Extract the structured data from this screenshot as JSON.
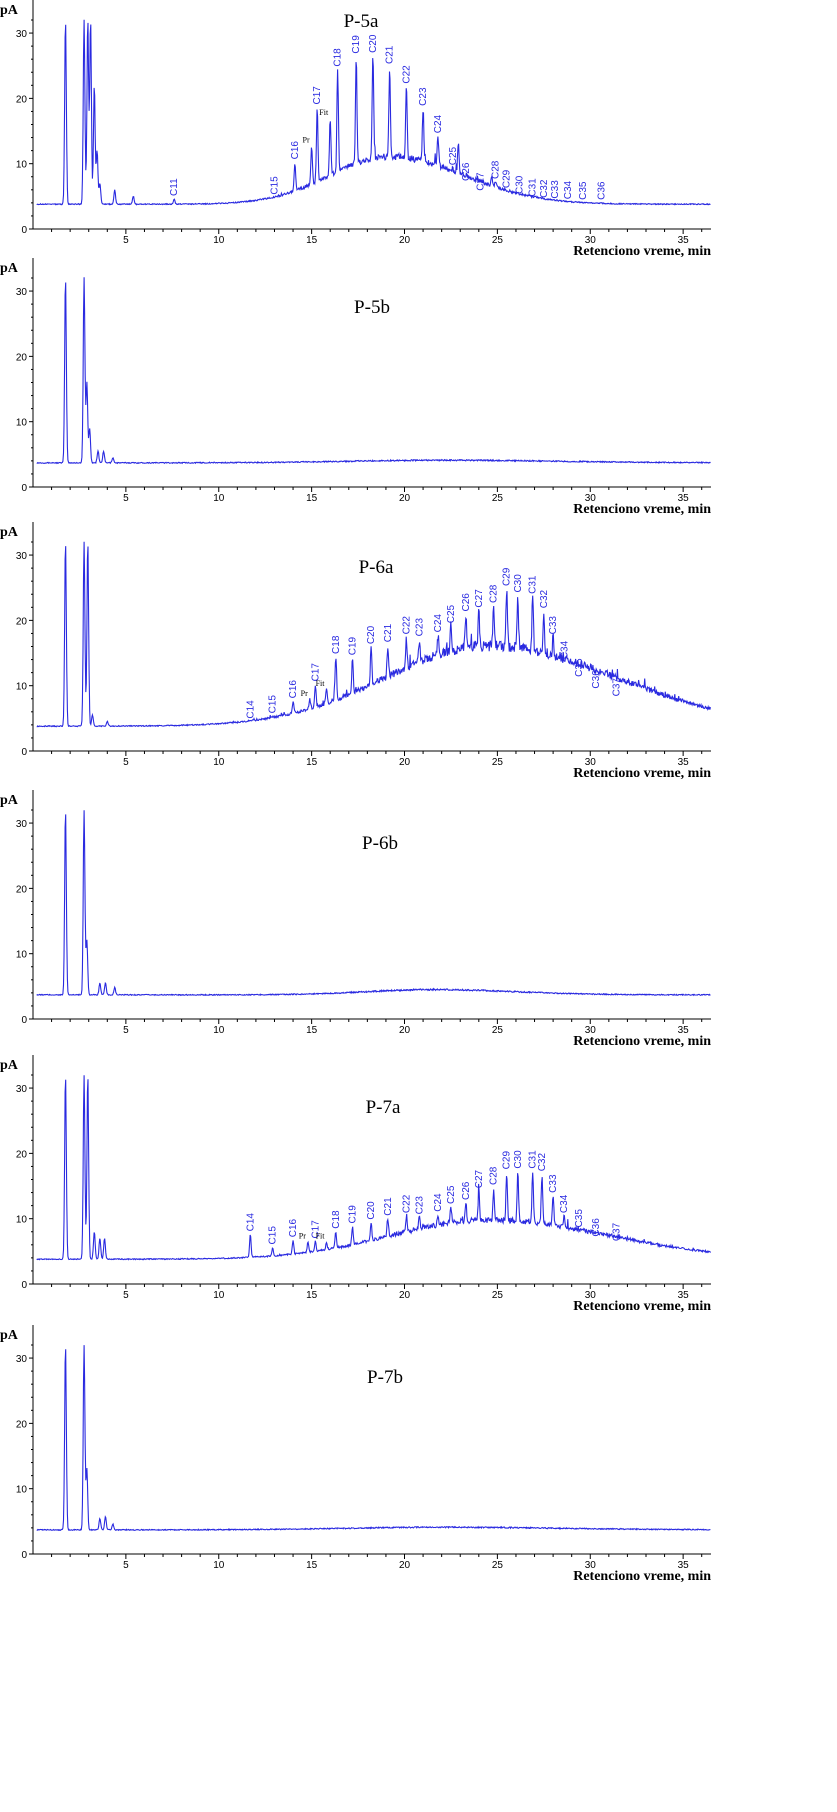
{
  "page": {
    "background": "#ffffff",
    "trace_color": "#2a2ae0"
  },
  "chart_data": [
    {
      "type": "line",
      "title": "P-5a",
      "ylabel": "pA",
      "xlabel": "Retenciono vreme, min",
      "xlim": [
        0,
        36.5
      ],
      "ylim": [
        0,
        32
      ],
      "xticks": [
        5,
        10,
        15,
        20,
        25,
        30,
        35
      ],
      "yticks": [
        0,
        10,
        20,
        30
      ],
      "baseline": 3.8,
      "hump": {
        "center": 19.2,
        "width": 3.2,
        "height": 7.3
      },
      "solvent_peaks": [
        {
          "t": 1.75,
          "h": 32
        },
        {
          "t": 2.75,
          "h": 32
        },
        {
          "t": 2.95,
          "h": 32
        },
        {
          "t": 3.1,
          "h": 32
        },
        {
          "t": 3.3,
          "h": 22
        },
        {
          "t": 3.45,
          "h": 12
        },
        {
          "t": 3.6,
          "h": 7
        },
        {
          "t": 4.4,
          "h": 6
        },
        {
          "t": 5.4,
          "h": 5
        }
      ],
      "peaks": [
        {
          "label": "C11",
          "t": 7.6,
          "y": 4.6
        },
        {
          "label": "C15",
          "t": 13.0,
          "y": 4.8
        },
        {
          "label": "C16",
          "t": 14.1,
          "y": 10.2
        },
        {
          "label": "Pr",
          "t": 15.0,
          "y": 12.8
        },
        {
          "label": "C17",
          "t": 15.3,
          "y": 18.6
        },
        {
          "label": "Fit",
          "t": 16.0,
          "y": 17.0
        },
        {
          "label": "C18",
          "t": 16.4,
          "y": 24.4
        },
        {
          "label": "C19",
          "t": 17.4,
          "y": 26.4
        },
        {
          "label": "C20",
          "t": 18.3,
          "y": 26.5
        },
        {
          "label": "C21",
          "t": 19.2,
          "y": 24.8
        },
        {
          "label": "C22",
          "t": 20.1,
          "y": 21.8
        },
        {
          "label": "C23",
          "t": 21.0,
          "y": 18.4
        },
        {
          "label": "C24",
          "t": 21.8,
          "y": 14.2
        },
        {
          "label": "C25",
          "t": 22.6,
          "y": 9.3
        },
        {
          "label": "C26",
          "t": 23.3,
          "y": 6.9
        },
        {
          "label": "C27",
          "t": 24.1,
          "y": 5.4
        },
        {
          "label": "C28",
          "t": 24.9,
          "y": 7.2
        },
        {
          "label": "C29",
          "t": 25.5,
          "y": 5.8
        },
        {
          "label": "C30",
          "t": 26.2,
          "y": 4.9
        },
        {
          "label": "C31",
          "t": 26.9,
          "y": 4.5
        },
        {
          "label": "C32",
          "t": 27.5,
          "y": 4.3
        },
        {
          "label": "C33",
          "t": 28.1,
          "y": 4.2
        },
        {
          "label": "C34",
          "t": 28.8,
          "y": 4.1
        },
        {
          "label": "C35",
          "t": 29.6,
          "y": 4.0
        },
        {
          "label": "C36",
          "t": 30.6,
          "y": 4.0
        }
      ],
      "minor_peaks": [
        {
          "t": 22.9,
          "y": 13.0
        },
        {
          "t": 24.7,
          "y": 8.0
        }
      ]
    },
    {
      "type": "line",
      "title": "P-5b",
      "ylabel": "pA",
      "xlabel": "Retenciono vreme, min",
      "xlim": [
        0,
        36.5
      ],
      "ylim": [
        0,
        32
      ],
      "xticks": [
        5,
        10,
        15,
        20,
        25,
        30,
        35
      ],
      "yticks": [
        0,
        10,
        20,
        30
      ],
      "baseline": 3.7,
      "hump": {
        "center": 22.0,
        "width": 5.0,
        "height": 0.4
      },
      "solvent_peaks": [
        {
          "t": 1.75,
          "h": 32
        },
        {
          "t": 2.75,
          "h": 32
        },
        {
          "t": 2.9,
          "h": 16
        },
        {
          "t": 3.05,
          "h": 9
        },
        {
          "t": 3.5,
          "h": 5.5
        },
        {
          "t": 3.8,
          "h": 5.5
        },
        {
          "t": 4.3,
          "h": 4.5
        }
      ],
      "peaks": [],
      "minor_peaks": []
    },
    {
      "type": "line",
      "title": "P-6a",
      "ylabel": "pA",
      "xlabel": "Retenciono vreme, min",
      "xlim": [
        0,
        36.5
      ],
      "ylim": [
        0,
        32
      ],
      "xticks": [
        5,
        10,
        15,
        20,
        25,
        30,
        35
      ],
      "yticks": [
        0,
        10,
        20,
        30
      ],
      "baseline": 3.8,
      "hump": {
        "center": 24.5,
        "width": 5.5,
        "height": 12.3
      },
      "solvent_peaks": [
        {
          "t": 1.75,
          "h": 32
        },
        {
          "t": 2.75,
          "h": 32
        },
        {
          "t": 2.95,
          "h": 32
        },
        {
          "t": 3.2,
          "h": 5.5
        },
        {
          "t": 4.0,
          "h": 4.5
        }
      ],
      "peaks": [
        {
          "label": "C14",
          "t": 11.7,
          "y": 4.5
        },
        {
          "label": "C15",
          "t": 12.9,
          "y": 5.3
        },
        {
          "label": "C16",
          "t": 14.0,
          "y": 7.6
        },
        {
          "label": "Pr",
          "t": 14.9,
          "y": 8.0
        },
        {
          "label": "C17",
          "t": 15.2,
          "y": 10.2
        },
        {
          "label": "Fit",
          "t": 15.8,
          "y": 9.5
        },
        {
          "label": "C18",
          "t": 16.3,
          "y": 14.4
        },
        {
          "label": "C19",
          "t": 17.2,
          "y": 14.2
        },
        {
          "label": "C20",
          "t": 18.2,
          "y": 15.9
        },
        {
          "label": "C21",
          "t": 19.1,
          "y": 16.2
        },
        {
          "label": "C22",
          "t": 20.1,
          "y": 17.4
        },
        {
          "label": "C23",
          "t": 20.8,
          "y": 17.1
        },
        {
          "label": "C24",
          "t": 21.8,
          "y": 17.7
        },
        {
          "label": "C25",
          "t": 22.5,
          "y": 19.1
        },
        {
          "label": "C26",
          "t": 23.3,
          "y": 20.9
        },
        {
          "label": "C27",
          "t": 24.0,
          "y": 21.5
        },
        {
          "label": "C28",
          "t": 24.8,
          "y": 22.2
        },
        {
          "label": "C29",
          "t": 25.5,
          "y": 24.8
        },
        {
          "label": "C30",
          "t": 26.1,
          "y": 23.8
        },
        {
          "label": "C31",
          "t": 26.9,
          "y": 23.6
        },
        {
          "label": "C32",
          "t": 27.5,
          "y": 21.4
        },
        {
          "label": "C33",
          "t": 28.0,
          "y": 17.4
        },
        {
          "label": "C34",
          "t": 28.6,
          "y": 13.6
        },
        {
          "label": "C35",
          "t": 29.4,
          "y": 10.9
        },
        {
          "label": "C36",
          "t": 30.3,
          "y": 9.1
        },
        {
          "label": "C37",
          "t": 31.4,
          "y": 7.9
        }
      ],
      "minor_peaks": []
    },
    {
      "type": "line",
      "title": "P-6b",
      "ylabel": "pA",
      "xlabel": "Retenciono vreme, min",
      "xlim": [
        0,
        36.5
      ],
      "ylim": [
        0,
        32
      ],
      "xticks": [
        5,
        10,
        15,
        20,
        25,
        30,
        35
      ],
      "yticks": [
        0,
        10,
        20,
        30
      ],
      "baseline": 3.7,
      "hump": {
        "center": 21.5,
        "width": 3.5,
        "height": 0.8
      },
      "solvent_peaks": [
        {
          "t": 1.75,
          "h": 32
        },
        {
          "t": 2.75,
          "h": 32
        },
        {
          "t": 2.9,
          "h": 12
        },
        {
          "t": 3.6,
          "h": 5.5
        },
        {
          "t": 3.9,
          "h": 5.5
        },
        {
          "t": 4.4,
          "h": 4.8
        }
      ],
      "peaks": [],
      "minor_peaks": []
    },
    {
      "type": "line",
      "title": "P-7a",
      "ylabel": "pA",
      "xlabel": "Retenciono vreme, min",
      "xlim": [
        0,
        36.5
      ],
      "ylim": [
        0,
        32
      ],
      "xticks": [
        5,
        10,
        15,
        20,
        25,
        30,
        35
      ],
      "yticks": [
        0,
        10,
        20,
        30
      ],
      "baseline": 3.8,
      "hump": {
        "center": 24.5,
        "width": 5.2,
        "height": 6.0
      },
      "solvent_peaks": [
        {
          "t": 1.75,
          "h": 32
        },
        {
          "t": 2.75,
          "h": 32
        },
        {
          "t": 2.95,
          "h": 32
        },
        {
          "t": 3.3,
          "h": 8
        },
        {
          "t": 3.6,
          "h": 7
        },
        {
          "t": 3.85,
          "h": 7
        }
      ],
      "peaks": [
        {
          "label": "C14",
          "t": 11.7,
          "y": 7.6
        },
        {
          "label": "C15",
          "t": 12.9,
          "y": 5.6
        },
        {
          "label": "C16",
          "t": 14.0,
          "y": 6.7
        },
        {
          "label": "Pr",
          "t": 14.8,
          "y": 6.5
        },
        {
          "label": "C17",
          "t": 15.2,
          "y": 6.5
        },
        {
          "label": "Fit",
          "t": 15.8,
          "y": 6.5
        },
        {
          "label": "C18",
          "t": 16.3,
          "y": 8.0
        },
        {
          "label": "C19",
          "t": 17.2,
          "y": 8.8
        },
        {
          "label": "C20",
          "t": 18.2,
          "y": 9.4
        },
        {
          "label": "C21",
          "t": 19.1,
          "y": 10.0
        },
        {
          "label": "C22",
          "t": 20.1,
          "y": 10.4
        },
        {
          "label": "C23",
          "t": 20.8,
          "y": 10.2
        },
        {
          "label": "C24",
          "t": 21.8,
          "y": 10.6
        },
        {
          "label": "C25",
          "t": 22.5,
          "y": 11.8
        },
        {
          "label": "C26",
          "t": 23.3,
          "y": 12.4
        },
        {
          "label": "C27",
          "t": 24.0,
          "y": 14.2
        },
        {
          "label": "C28",
          "t": 24.8,
          "y": 14.7
        },
        {
          "label": "C29",
          "t": 25.5,
          "y": 17.1
        },
        {
          "label": "C30",
          "t": 26.1,
          "y": 17.2
        },
        {
          "label": "C31",
          "t": 26.9,
          "y": 17.2
        },
        {
          "label": "C32",
          "t": 27.4,
          "y": 16.8
        },
        {
          "label": "C33",
          "t": 28.0,
          "y": 13.5
        },
        {
          "label": "C34",
          "t": 28.6,
          "y": 10.4
        },
        {
          "label": "C35",
          "t": 29.4,
          "y": 8.2
        },
        {
          "label": "C36",
          "t": 30.3,
          "y": 6.8
        },
        {
          "label": "C37",
          "t": 31.4,
          "y": 6.1
        }
      ],
      "minor_peaks": []
    },
    {
      "type": "line",
      "title": "P-7b",
      "ylabel": "pA",
      "xlabel": "Retenciono vreme, min",
      "xlim": [
        0,
        36.5
      ],
      "ylim": [
        0,
        32
      ],
      "xticks": [
        5,
        10,
        15,
        20,
        25,
        30,
        35
      ],
      "yticks": [
        0,
        10,
        20,
        30
      ],
      "baseline": 3.7,
      "hump": {
        "center": 22.0,
        "width": 5.0,
        "height": 0.4
      },
      "solvent_peaks": [
        {
          "t": 1.75,
          "h": 32
        },
        {
          "t": 2.75,
          "h": 32
        },
        {
          "t": 2.9,
          "h": 13
        },
        {
          "t": 3.6,
          "h": 5.5
        },
        {
          "t": 3.9,
          "h": 5.8
        },
        {
          "t": 4.3,
          "h": 4.6
        }
      ],
      "peaks": [],
      "minor_peaks": []
    }
  ]
}
